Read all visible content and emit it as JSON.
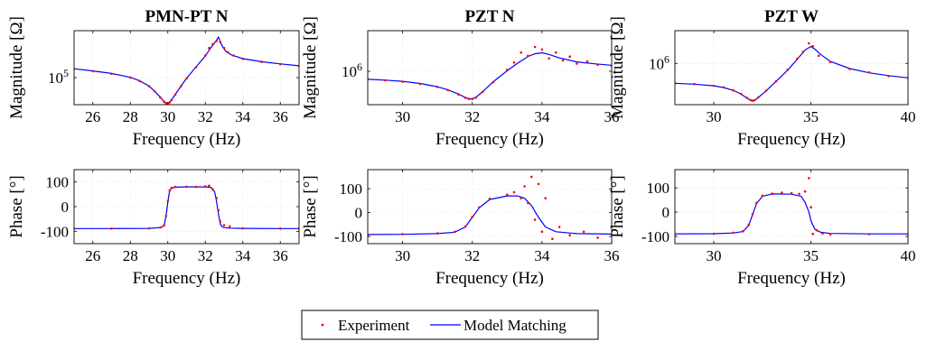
{
  "figure": {
    "legend": {
      "placement": "bottom-center",
      "entries": [
        {
          "label": "Experiment",
          "style": "dots",
          "color": "#ff0000"
        },
        {
          "label": "Model Matching",
          "style": "line",
          "color": "#0000ff"
        }
      ]
    },
    "colors": {
      "experiment": "#ff0000",
      "model": "#0000ff",
      "grid": "#e3e3e3",
      "axis": "#000000"
    }
  },
  "chart_data": [
    {
      "type": "line",
      "panel": "magnitude",
      "title": "PMN-PT N",
      "xlabel": "Frequency (Hz)",
      "ylabel": "Magnitude [Ω]",
      "xlim": [
        25,
        37
      ],
      "xticks": [
        26,
        28,
        30,
        32,
        34,
        36
      ],
      "yscale": "log",
      "ylim": [
        45000,
        400000
      ],
      "yticks": [
        {
          "value": 100000,
          "label": "10",
          "sup": "5"
        }
      ],
      "grid": true,
      "series": [
        {
          "name": "Model Matching",
          "style": "line",
          "x": [
            25,
            26,
            27,
            28,
            28.5,
            29,
            29.3,
            29.6,
            29.8,
            29.9,
            30,
            30.1,
            30.2,
            30.4,
            30.7,
            31,
            31.5,
            32,
            32.3,
            32.5,
            32.7,
            32.8,
            32.9,
            33.1,
            33.4,
            34,
            35,
            36,
            37
          ],
          "y": [
            130000,
            122000,
            113000,
            101000,
            91000,
            78000,
            67000,
            56000,
            49500,
            47500,
            46500,
            48500,
            52000,
            61000,
            78000,
            98000,
            137000,
            190000,
            243000,
            280000,
            330000,
            290000,
            255000,
            217000,
            195000,
            175000,
            160000,
            150000,
            142000
          ]
        },
        {
          "name": "Experiment",
          "style": "dots",
          "x": [
            25,
            26,
            27,
            28,
            28.5,
            29,
            29.3,
            29.6,
            29.8,
            29.9,
            30,
            30.1,
            30.2,
            30.4,
            30.7,
            31,
            31.5,
            32,
            32.2,
            32.4,
            32.6,
            32.8,
            33.0,
            33.2,
            33.5,
            34,
            35,
            36,
            37
          ],
          "y": [
            129000,
            121000,
            112000,
            100000,
            90500,
            77500,
            66500,
            55500,
            49000,
            47200,
            46300,
            48200,
            51500,
            60500,
            77500,
            97500,
            136000,
            192000,
            240000,
            268000,
            295000,
            285000,
            240000,
            212000,
            192000,
            174000,
            159000,
            149000,
            141000
          ]
        }
      ]
    },
    {
      "type": "line",
      "panel": "magnitude",
      "title": "PZT N",
      "xlabel": "Frequency (Hz)",
      "ylabel": "Magnitude [Ω]",
      "xlim": [
        29,
        36
      ],
      "xticks": [
        30,
        32,
        34,
        36
      ],
      "yscale": "log",
      "ylim": [
        320000,
        4000000
      ],
      "yticks": [
        {
          "value": 1000000,
          "label": "10",
          "sup": "6"
        }
      ],
      "grid": true,
      "series": [
        {
          "name": "Model Matching",
          "style": "line",
          "x": [
            29,
            29.5,
            30,
            30.5,
            31,
            31.3,
            31.6,
            31.8,
            31.9,
            32,
            32.1,
            32.3,
            32.6,
            33,
            33.3,
            33.6,
            33.8,
            34,
            34.2,
            34.5,
            35,
            35.5,
            36
          ],
          "y": [
            760000,
            740000,
            710000,
            660000,
            590000,
            530000,
            460000,
            410000,
            392000,
            390000,
            410000,
            500000,
            700000,
            1020000,
            1320000,
            1660000,
            1820000,
            1880000,
            1780000,
            1580000,
            1380000,
            1290000,
            1230000
          ]
        },
        {
          "name": "Experiment",
          "style": "dots",
          "x": [
            29,
            29.5,
            30,
            30.5,
            31,
            31.3,
            31.6,
            31.8,
            31.9,
            32,
            32.1,
            32.3,
            32.6,
            33,
            33.2,
            33.4,
            33.6,
            33.8,
            34,
            34.2,
            34.4,
            34.6,
            34.8,
            35,
            35.3,
            35.6,
            36
          ],
          "y": [
            770000,
            735000,
            700000,
            650000,
            585000,
            525000,
            455000,
            405000,
            390000,
            388000,
            408000,
            495000,
            690000,
            1050000,
            1350000,
            1900000,
            1700000,
            2300000,
            2100000,
            1550000,
            1900000,
            1450000,
            1650000,
            1300000,
            1400000,
            1250000,
            1200000
          ]
        }
      ]
    },
    {
      "type": "line",
      "panel": "magnitude",
      "title": "PZT W",
      "xlabel": "Frequency (Hz)",
      "ylabel": "Magnitude [Ω]",
      "xlim": [
        28,
        40
      ],
      "xticks": [
        30,
        35,
        40
      ],
      "yscale": "log",
      "ylim": [
        300000,
        2600000
      ],
      "yticks": [
        {
          "value": 1000000,
          "label": "10",
          "sup": "6"
        }
      ],
      "grid": true,
      "series": [
        {
          "name": "Model Matching",
          "style": "line",
          "x": [
            28,
            29,
            30,
            30.5,
            31,
            31.4,
            31.7,
            31.9,
            32,
            32.1,
            32.3,
            32.7,
            33.2,
            33.8,
            34.3,
            34.7,
            35,
            35.2,
            35.5,
            36,
            37,
            38,
            39,
            40
          ],
          "y": [
            560000,
            545000,
            520000,
            495000,
            455000,
            410000,
            365000,
            340000,
            335000,
            340000,
            370000,
            450000,
            590000,
            820000,
            1130000,
            1480000,
            1640000,
            1520000,
            1300000,
            1060000,
            860000,
            760000,
            700000,
            655000
          ]
        },
        {
          "name": "Experiment",
          "style": "dots",
          "x": [
            28,
            29,
            30,
            30.5,
            31,
            31.4,
            31.7,
            31.9,
            32,
            32.1,
            32.3,
            32.7,
            33.2,
            33.8,
            34.3,
            34.6,
            34.9,
            35.1,
            35.4,
            36,
            37,
            38,
            39,
            40
          ],
          "y": [
            565000,
            548000,
            522000,
            497000,
            457000,
            412000,
            367000,
            342000,
            337000,
            342000,
            372000,
            452000,
            592000,
            830000,
            1150000,
            1400000,
            1800000,
            1650000,
            1250000,
            1040000,
            850000,
            770000,
            690000,
            660000
          ]
        }
      ]
    },
    {
      "type": "line",
      "panel": "phase",
      "title": "",
      "xlabel": "Frequency (Hz)",
      "ylabel": "Phase [°]",
      "xlim": [
        25,
        37
      ],
      "xticks": [
        26,
        28,
        30,
        32,
        34,
        36
      ],
      "yscale": "linear",
      "ylim": [
        -150,
        150
      ],
      "yticks": [
        {
          "value": 100,
          "label": "100"
        },
        {
          "value": 0,
          "label": "0"
        },
        {
          "value": -100,
          "label": "-100"
        }
      ],
      "grid": true,
      "series": [
        {
          "name": "Model Matching",
          "style": "line",
          "x": [
            25,
            27,
            29,
            29.6,
            29.8,
            29.9,
            30,
            30.1,
            30.2,
            30.4,
            31,
            31.5,
            32,
            32.3,
            32.5,
            32.6,
            32.7,
            32.8,
            32.9,
            33,
            33.3,
            34,
            36,
            37
          ],
          "y": [
            -89,
            -89,
            -88,
            -85,
            -78,
            -40,
            20,
            65,
            75,
            79,
            80,
            80,
            80,
            78,
            60,
            20,
            -30,
            -70,
            -82,
            -85,
            -87,
            -88,
            -89,
            -89
          ]
        },
        {
          "name": "Experiment",
          "style": "dots",
          "x": [
            25,
            27,
            29,
            29.6,
            29.8,
            29.9,
            30,
            30.1,
            30.2,
            30.4,
            31,
            31.5,
            32,
            32.2,
            32.4,
            32.6,
            32.7,
            32.8,
            33,
            33.3,
            34,
            36,
            37
          ],
          "y": [
            -89,
            -89,
            -88,
            -84,
            -76,
            -38,
            22,
            66,
            76,
            80,
            81,
            80,
            82,
            85,
            70,
            35,
            -15,
            -60,
            -75,
            -80,
            -88,
            -89,
            -89
          ]
        }
      ]
    },
    {
      "type": "line",
      "panel": "phase",
      "title": "",
      "xlabel": "Frequency (Hz)",
      "ylabel": "Phase [°]",
      "xlim": [
        29,
        36
      ],
      "xticks": [
        30,
        32,
        34,
        36
      ],
      "yscale": "linear",
      "ylim": [
        -130,
        180
      ],
      "yticks": [
        {
          "value": 100,
          "label": "100"
        },
        {
          "value": 0,
          "label": "0"
        },
        {
          "value": -100,
          "label": "-100"
        }
      ],
      "grid": true,
      "series": [
        {
          "name": "Model Matching",
          "style": "line",
          "x": [
            29,
            30,
            31,
            31.5,
            31.8,
            32,
            32.2,
            32.5,
            33,
            33.3,
            33.5,
            33.7,
            33.9,
            34.1,
            34.4,
            35,
            36
          ],
          "y": [
            -92,
            -91,
            -88,
            -82,
            -60,
            -20,
            20,
            55,
            70,
            70,
            60,
            30,
            -20,
            -60,
            -80,
            -88,
            -90
          ]
        },
        {
          "name": "Experiment",
          "style": "dots",
          "x": [
            29,
            30,
            31,
            31.5,
            31.8,
            32,
            32.2,
            32.5,
            33,
            33.2,
            33.4,
            33.5,
            33.6,
            33.7,
            33.8,
            33.9,
            34,
            34.1,
            34.3,
            34.5,
            34.8,
            35.2,
            35.6,
            36
          ],
          "y": [
            -94,
            -90,
            -87,
            -80,
            -58,
            -18,
            22,
            58,
            75,
            85,
            60,
            110,
            40,
            150,
            -30,
            120,
            -80,
            60,
            -110,
            -60,
            -95,
            -80,
            -105,
            -92
          ]
        }
      ]
    },
    {
      "type": "line",
      "panel": "phase",
      "title": "",
      "xlabel": "Frequency (Hz)",
      "ylabel": "Phase [°]",
      "xlim": [
        28,
        40
      ],
      "xticks": [
        30,
        35,
        40
      ],
      "yscale": "linear",
      "ylim": [
        -130,
        175
      ],
      "yticks": [
        {
          "value": 100,
          "label": "100"
        },
        {
          "value": 0,
          "label": "0"
        },
        {
          "value": -100,
          "label": "-100"
        }
      ],
      "grid": true,
      "series": [
        {
          "name": "Model Matching",
          "style": "line",
          "x": [
            28,
            30,
            31,
            31.5,
            31.8,
            32,
            32.2,
            32.5,
            33,
            34,
            34.5,
            34.7,
            34.9,
            35,
            35.2,
            35.5,
            36,
            38,
            40
          ],
          "y": [
            -90,
            -89,
            -86,
            -80,
            -55,
            -10,
            35,
            65,
            75,
            74,
            65,
            40,
            0,
            -35,
            -70,
            -83,
            -88,
            -90,
            -90
          ]
        },
        {
          "name": "Experiment",
          "style": "dots",
          "x": [
            28,
            30,
            31,
            31.5,
            31.8,
            32,
            32.2,
            32.5,
            33,
            33.5,
            34,
            34.4,
            34.7,
            34.9,
            35,
            35.1,
            35.3,
            35.6,
            36,
            38,
            40
          ],
          "y": [
            -91,
            -89,
            -85,
            -79,
            -52,
            -8,
            38,
            68,
            76,
            80,
            78,
            75,
            85,
            140,
            20,
            -90,
            -75,
            -88,
            -92,
            -91,
            -90
          ]
        }
      ]
    }
  ]
}
